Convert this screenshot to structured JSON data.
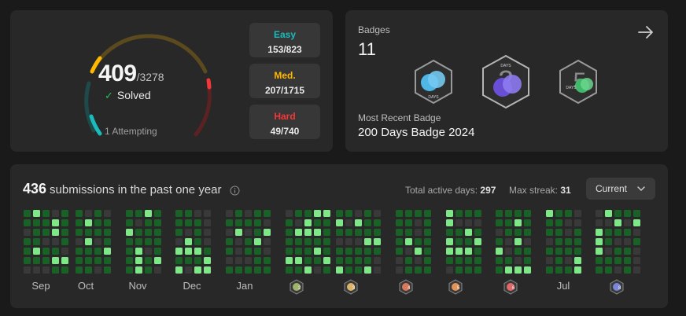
{
  "progress": {
    "solved": "409",
    "total": "/3278",
    "solved_label": "Solved",
    "attempting": "1 Attempting",
    "easy": {
      "label": "Easy",
      "count": "153/823"
    },
    "medium": {
      "label": "Med.",
      "count": "207/1715"
    },
    "hard": {
      "label": "Hard",
      "count": "49/740"
    },
    "colors": {
      "easy": "#1cbaba",
      "medium": "#ffb700",
      "hard": "#f63737"
    }
  },
  "badges": {
    "label": "Badges",
    "count": "11",
    "recent_label": "Most Recent Badge",
    "recent_name": "200 Days Badge 2024",
    "icons": [
      "days-badge-icon",
      "200-days-badge-icon",
      "50-days-badge-icon"
    ]
  },
  "heatmap": {
    "count": "436",
    "title_rest": "submissions in the past one year",
    "active_label": "Total active days:",
    "active_value": "297",
    "streak_label": "Max streak:",
    "streak_value": "31",
    "select_value": "Current",
    "months": [
      "Sep",
      "Oct",
      "Nov",
      "Dec",
      "Jan",
      "Jul"
    ],
    "mini_badges": [
      "2",
      "3",
      "4",
      "5",
      "6",
      "8"
    ],
    "colors": {
      "empty": "#393939",
      "low": "#196127",
      "high": "#7ee787"
    }
  }
}
